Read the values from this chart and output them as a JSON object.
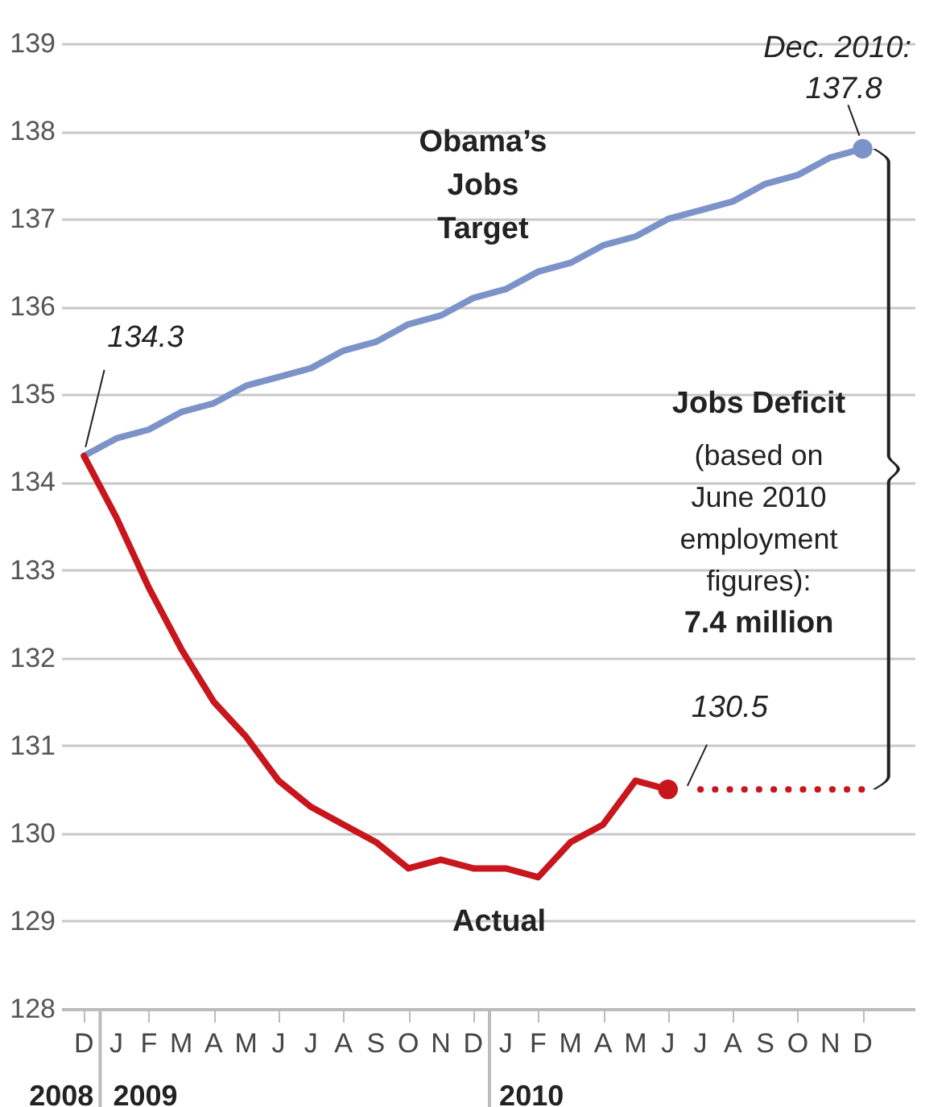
{
  "chart_data": {
    "type": "line",
    "categories": [
      "D",
      "J",
      "F",
      "M",
      "A",
      "M",
      "J",
      "J",
      "A",
      "S",
      "O",
      "N",
      "D",
      "J",
      "F",
      "M",
      "A",
      "M",
      "J",
      "J",
      "A",
      "S",
      "O",
      "N",
      "D"
    ],
    "ylim": [
      128,
      139
    ],
    "yticks": [
      128,
      129,
      130,
      131,
      132,
      133,
      134,
      135,
      136,
      137,
      138,
      139
    ],
    "grid": "y",
    "legend": false,
    "series": [
      {
        "name": "Obama’s Jobs Target",
        "color": "#7b93c8",
        "line_style": "solid",
        "values": [
          134.3,
          134.5,
          134.6,
          134.8,
          134.9,
          135.1,
          135.2,
          135.3,
          135.5,
          135.6,
          135.8,
          135.9,
          136.1,
          136.2,
          136.4,
          136.5,
          136.7,
          136.8,
          137.0,
          137.1,
          137.2,
          137.4,
          137.5,
          137.7,
          137.8
        ],
        "value_labels": [
          "134.3",
          null,
          null,
          null,
          null,
          null,
          null,
          null,
          null,
          null,
          null,
          null,
          null,
          null,
          null,
          null,
          null,
          null,
          null,
          null,
          null,
          null,
          null,
          null,
          "137.8"
        ]
      },
      {
        "name": "Actual",
        "color": "#c8161d",
        "line_style": "solid",
        "values": [
          134.3,
          133.6,
          132.8,
          132.1,
          131.5,
          131.1,
          130.6,
          130.3,
          130.1,
          129.9,
          129.6,
          129.7,
          129.6,
          129.6,
          129.5,
          129.9,
          130.1,
          130.6,
          130.5,
          null,
          null,
          null,
          null,
          null,
          null
        ],
        "value_labels": [
          null,
          null,
          null,
          null,
          null,
          null,
          null,
          null,
          null,
          null,
          null,
          null,
          null,
          null,
          null,
          null,
          null,
          null,
          "130.5",
          null,
          null,
          null,
          null,
          null,
          null
        ]
      },
      {
        "type": "line",
        "color": "#c8161d",
        "line_style": "dotted",
        "values": [
          null,
          null,
          null,
          null,
          null,
          null,
          null,
          null,
          null,
          null,
          null,
          null,
          null,
          null,
          null,
          null,
          null,
          null,
          null,
          130.5,
          130.5,
          130.5,
          130.5,
          130.5,
          130.5
        ]
      },
      {
        "type": "scatter",
        "color": "#7b93c8",
        "marker": "circle",
        "values": [
          null,
          null,
          null,
          null,
          null,
          null,
          null,
          null,
          null,
          null,
          null,
          null,
          null,
          null,
          null,
          null,
          null,
          null,
          null,
          null,
          null,
          null,
          null,
          null,
          137.8
        ]
      },
      {
        "type": "scatter",
        "color": "#c8161d",
        "marker": "circle",
        "values": [
          null,
          null,
          null,
          null,
          null,
          null,
          null,
          null,
          null,
          null,
          null,
          null,
          null,
          null,
          null,
          null,
          null,
          null,
          130.5,
          null,
          null,
          null,
          null,
          null,
          null
        ]
      }
    ],
    "annotations": [
      "Dec. 2010:",
      "Jobs Deficit",
      "(based on\nJune 2010\nemployment\nfigures):",
      "7.4 million",
      "2008",
      "2009",
      "2010"
    ]
  }
}
